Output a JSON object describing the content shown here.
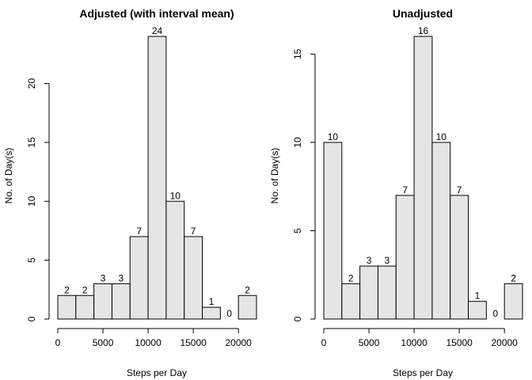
{
  "chart_data": [
    {
      "type": "bar",
      "title": "Adjusted (with interval mean)",
      "xlabel": "Steps per Day",
      "ylabel": "No. of Day(s)",
      "bin_edges": [
        0,
        2000,
        4000,
        6000,
        8000,
        10000,
        12000,
        14000,
        16000,
        18000,
        20000,
        22000
      ],
      "values": [
        2,
        2,
        3,
        3,
        7,
        24,
        10,
        7,
        1,
        0,
        2
      ],
      "data_labels": [
        "2",
        "2",
        "3",
        "3",
        "7",
        "24",
        "10",
        "7",
        "1",
        "0",
        "2"
      ],
      "x_ticks": [
        0,
        5000,
        10000,
        15000,
        20000
      ],
      "x_tick_labels": [
        "0",
        "5000",
        "10000",
        "15000",
        "20000"
      ],
      "y_ticks": [
        0,
        5,
        10,
        15,
        20
      ],
      "y_tick_labels": [
        "0",
        "5",
        "10",
        "15",
        "20"
      ],
      "xlim": [
        0,
        22000
      ],
      "ylim": [
        0,
        24
      ],
      "bar_color": "#e5e5e5",
      "grid": false
    },
    {
      "type": "bar",
      "title": "Unadjusted",
      "xlabel": "Steps per Day",
      "ylabel": "No. of Day(s)",
      "bin_edges": [
        0,
        2000,
        4000,
        6000,
        8000,
        10000,
        12000,
        14000,
        16000,
        18000,
        20000,
        22000
      ],
      "values": [
        10,
        2,
        3,
        3,
        7,
        16,
        10,
        7,
        1,
        0,
        2
      ],
      "data_labels": [
        "10",
        "2",
        "3",
        "3",
        "7",
        "16",
        "10",
        "7",
        "1",
        "0",
        "2"
      ],
      "x_ticks": [
        0,
        5000,
        10000,
        15000,
        20000
      ],
      "x_tick_labels": [
        "0",
        "5000",
        "10000",
        "15000",
        "20000"
      ],
      "y_ticks": [
        0,
        5,
        10,
        15
      ],
      "y_tick_labels": [
        "0",
        "5",
        "10",
        "15"
      ],
      "xlim": [
        0,
        22000
      ],
      "ylim": [
        0,
        16
      ],
      "bar_color": "#e5e5e5",
      "grid": false
    }
  ]
}
